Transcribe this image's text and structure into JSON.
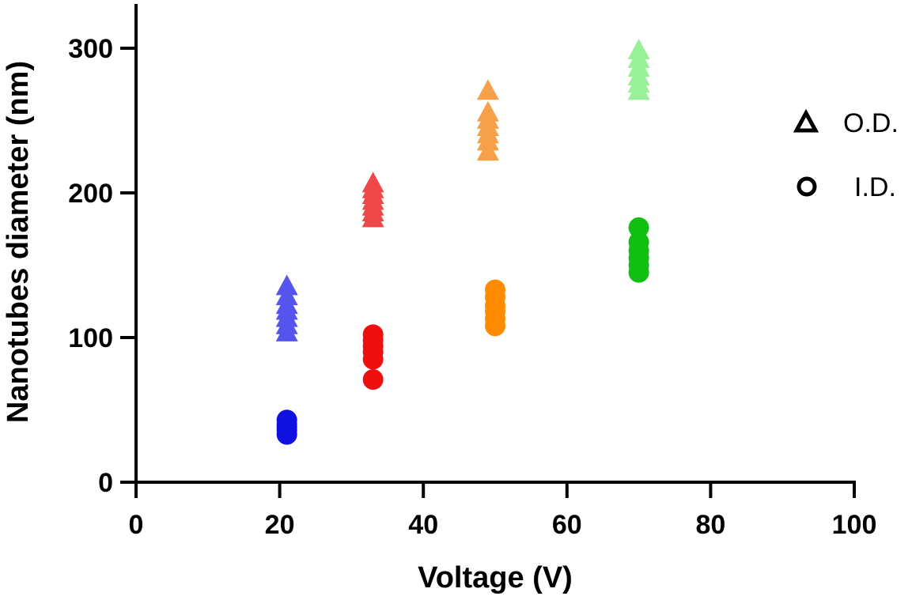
{
  "chart_data": {
    "type": "scatter",
    "xlabel": "Voltage (V)",
    "ylabel": "Nanotubes diameter (nm)",
    "xlim": [
      0,
      100
    ],
    "ylim": [
      0,
      330
    ],
    "x_ticks": [
      0,
      20,
      40,
      60,
      80,
      100
    ],
    "y_ticks": [
      0,
      100,
      200,
      300
    ],
    "grid": false,
    "legend": {
      "placement": "right",
      "entries": [
        {
          "label": "O.D.",
          "marker": "triangle"
        },
        {
          "label": "I.D.",
          "marker": "circle"
        }
      ]
    },
    "series": [
      {
        "marker": "triangle",
        "color": "#5555EE",
        "x": 21,
        "y": [
          103,
          108,
          113,
          118,
          122,
          128,
          135
        ]
      },
      {
        "marker": "circle",
        "color": "#1010E0",
        "x": 21,
        "y": [
          33,
          36,
          38,
          40,
          43
        ]
      },
      {
        "marker": "triangle",
        "color": "#F04848",
        "x": 33,
        "y": [
          182,
          186,
          190,
          194,
          198,
          202,
          206
        ]
      },
      {
        "marker": "circle",
        "color": "#EE1010",
        "x": 33,
        "y": [
          71,
          85,
          90,
          94,
          98,
          102
        ]
      },
      {
        "marker": "triangle",
        "color": "#F7A04A",
        "x": 49,
        "y": [
          228,
          235,
          240,
          245,
          250,
          255,
          270
        ]
      },
      {
        "marker": "circle",
        "color": "#FF8C00",
        "x": 50,
        "y": [
          108,
          113,
          118,
          122,
          128,
          133
        ]
      },
      {
        "marker": "triangle",
        "color": "#98F098",
        "x": 70,
        "y": [
          270,
          275,
          280,
          286,
          292,
          298
        ]
      },
      {
        "marker": "circle",
        "color": "#10C010",
        "x": 70,
        "y": [
          145,
          150,
          155,
          160,
          166,
          176
        ]
      }
    ]
  }
}
